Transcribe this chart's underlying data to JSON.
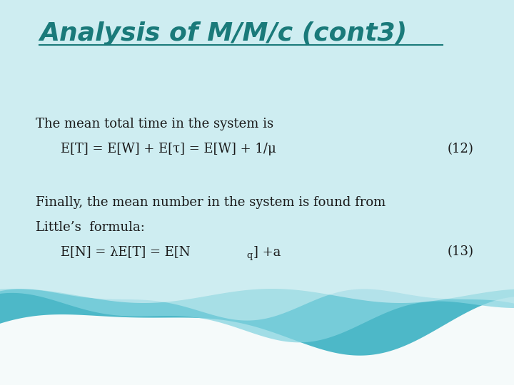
{
  "title": "Analysis of M/M/c (cont3)",
  "title_color": "#1a7a7a",
  "title_fontsize": 26,
  "bg_color": "#f5fafa",
  "body_text_color": "#1a1a1a",
  "line1": "The mean total time in the system is",
  "line2a": "E[T] = E[W] + E[τ] = E[W] + 1/μ",
  "eq_num1": "(12)",
  "line3": "Finally, the mean number in the system is found from",
  "line4": "Little’s  formula:",
  "line5a": "E[N] = λE[T] = E[N",
  "line5b": "q",
  "line5c": "] +a",
  "eq_num2": "(13)",
  "body_fontsize": 13,
  "eq_fontsize": 13
}
